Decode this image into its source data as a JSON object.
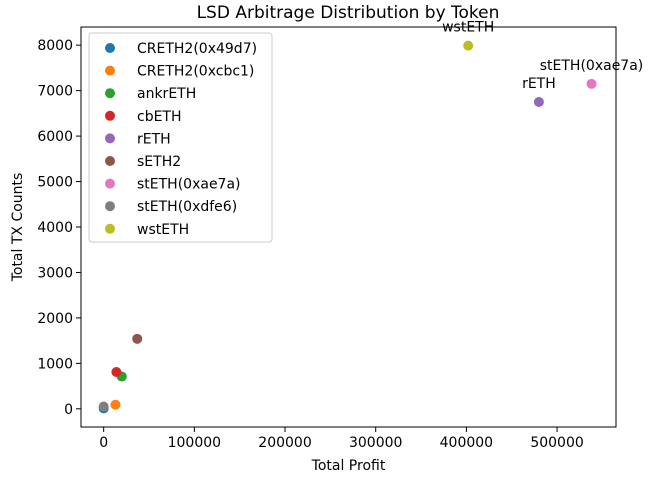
{
  "chart_data": {
    "type": "scatter",
    "title": "LSD Arbitrage Distribution by Token",
    "xlabel": "Total Profit",
    "ylabel": "Total TX Counts",
    "xlim": [
      -25000,
      565000
    ],
    "ylim": [
      -400,
      8400
    ],
    "xticks": [
      0,
      100000,
      200000,
      300000,
      400000,
      500000
    ],
    "yticks": [
      0,
      1000,
      2000,
      3000,
      4000,
      5000,
      6000,
      7000,
      8000
    ],
    "grid": false,
    "legend_position": "top-left",
    "series": [
      {
        "name": "CRETH2(0x49d7)",
        "color": "#1f77b4",
        "x": 0,
        "y": 10
      },
      {
        "name": "CRETH2(0xcbc1)",
        "color": "#ff7f0e",
        "x": 13000,
        "y": 90
      },
      {
        "name": "ankrETH",
        "color": "#2ca02c",
        "x": 20000,
        "y": 710
      },
      {
        "name": "cbETH",
        "color": "#d62728",
        "x": 14000,
        "y": 810
      },
      {
        "name": "rETH",
        "color": "#9467bd",
        "x": 480000,
        "y": 6750
      },
      {
        "name": "sETH2",
        "color": "#8c564b",
        "x": 37000,
        "y": 1540
      },
      {
        "name": "stETH(0xae7a)",
        "color": "#e377c2",
        "x": 538000,
        "y": 7150
      },
      {
        "name": "stETH(0xdfe6)",
        "color": "#7f7f7f",
        "x": 0,
        "y": 50
      },
      {
        "name": "wstETH",
        "color": "#bcbd22",
        "x": 402000,
        "y": 7990
      }
    ],
    "annotations": [
      {
        "text": "wstETH",
        "x": 402000,
        "y": 7990
      },
      {
        "text": "rETH",
        "x": 480000,
        "y": 6750
      },
      {
        "text": "stETH(0xae7a)",
        "x": 538000,
        "y": 7150
      }
    ]
  }
}
